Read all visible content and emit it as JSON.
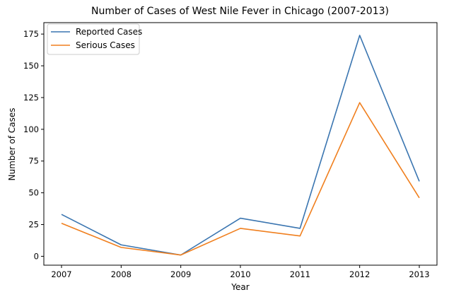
{
  "chart_data": {
    "type": "line",
    "title": "Number of Cases of West Nile Fever in Chicago (2007-2013)",
    "xlabel": "Year",
    "ylabel": "Number of Cases",
    "x": [
      "2007",
      "2008",
      "2009",
      "2010",
      "2011",
      "2012",
      "2013"
    ],
    "yticks": [
      "0",
      "25",
      "50",
      "75",
      "100",
      "125",
      "150",
      "175"
    ],
    "ylim": [
      -7,
      184
    ],
    "grid": false,
    "legend": "top-left",
    "series": [
      {
        "name": "Reported Cases",
        "color": "#3a75b0",
        "values": [
          33,
          9,
          1,
          30,
          22,
          174,
          59
        ]
      },
      {
        "name": "Serious Cases",
        "color": "#f07f1e",
        "values": [
          26,
          7,
          1,
          22,
          16,
          121,
          46
        ]
      }
    ]
  }
}
